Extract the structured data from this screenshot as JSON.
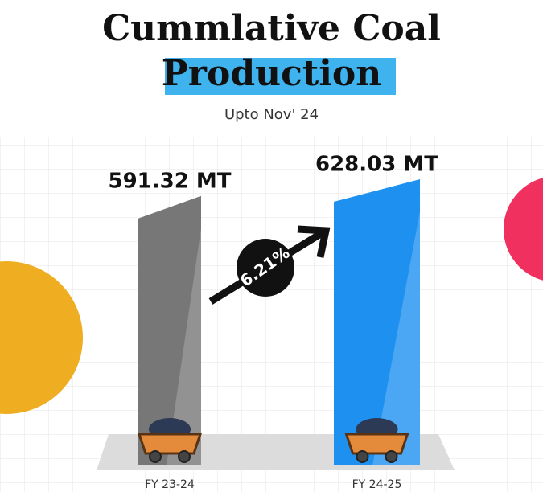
{
  "chart_data": {
    "type": "bar",
    "title": "Cummlative Coal Production",
    "subtitle": "Upto Nov' 24",
    "categories": [
      "FY 23-24",
      "FY 24-25"
    ],
    "values": [
      591.32,
      628.03
    ],
    "value_labels": [
      "591.32 MT",
      "628.03 MT"
    ],
    "colors": [
      "#777777",
      "#1e90f0"
    ],
    "annotation": "6.21%"
  }
}
